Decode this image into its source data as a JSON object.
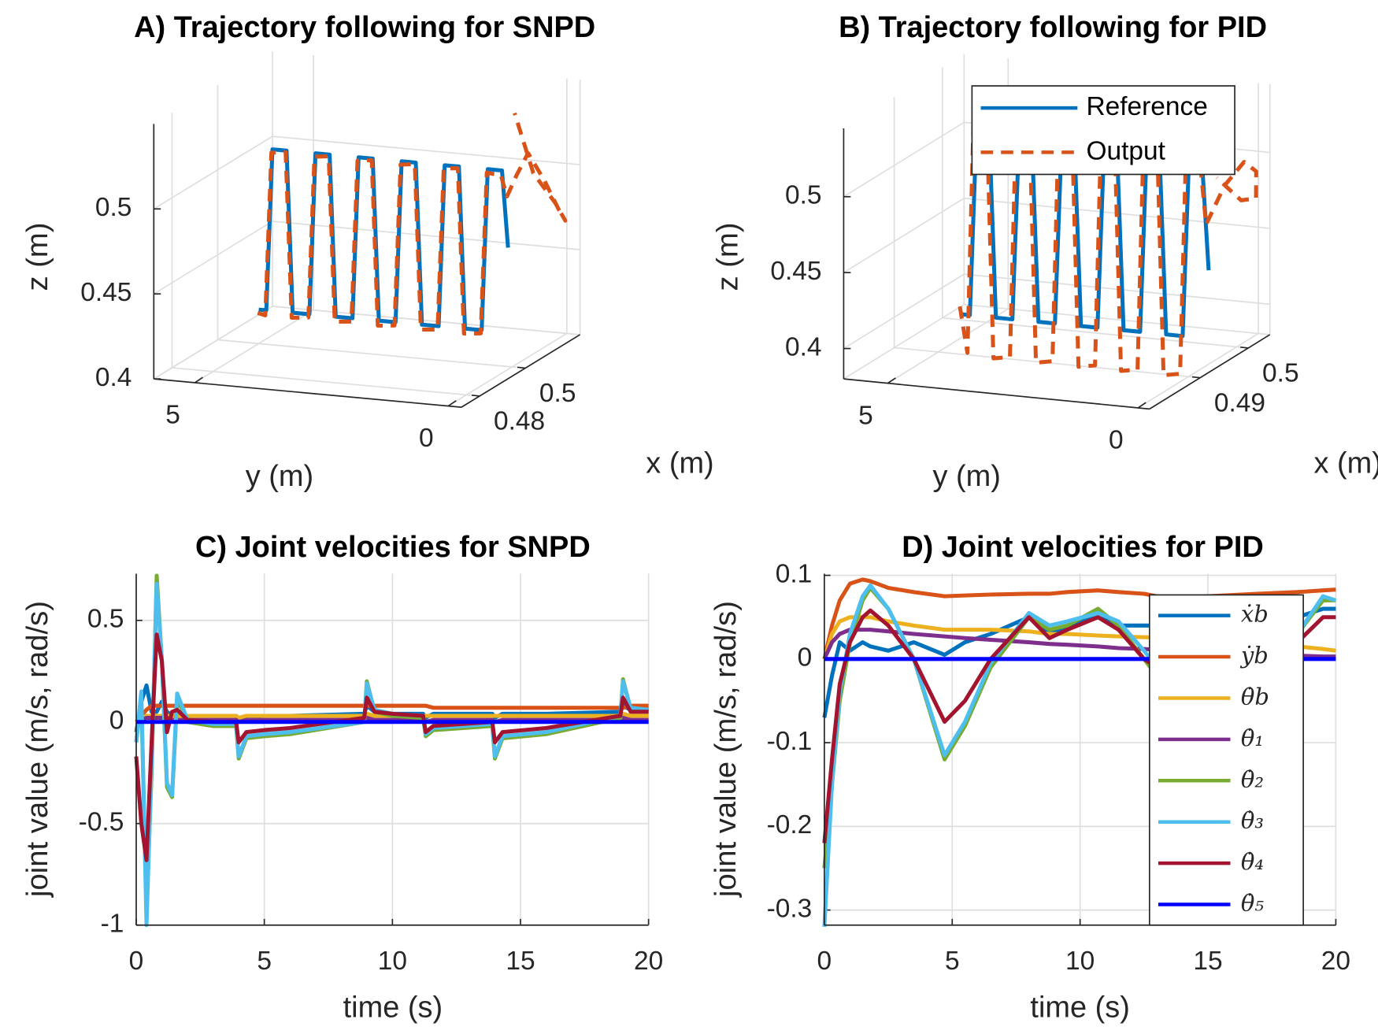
{
  "chart_data": [
    {
      "type": "line3d",
      "title": "A) Trajectory following for SNPD",
      "xlabel": "x (m)",
      "ylabel": "y (m)",
      "zlabel": "z (m)",
      "xlim": [
        0.472,
        0.524
      ],
      "ylim": [
        -0.26,
        5.81
      ],
      "zlim": [
        0.4,
        0.55
      ],
      "xticks": [
        0.48,
        0.5
      ],
      "yticks": [
        5,
        0
      ],
      "zticks": [
        0.4,
        0.45,
        0.5
      ],
      "grid": true,
      "series": [
        {
          "color": "#0072BD",
          "line_style": "solid",
          "x": [
            0.5,
            0.5,
            0.5,
            0.5,
            0.5,
            0.5,
            0.5,
            0.5,
            0.5,
            0.5,
            0.5,
            0.5,
            0.5,
            0.5,
            0.5,
            0.5,
            0.5,
            0.5,
            0.5,
            0.5,
            0.5,
            0.5,
            0.5,
            0.5,
            0.5
          ],
          "y": [
            5.0,
            4.85,
            4.73,
            4.45,
            4.33,
            4.0,
            3.88,
            3.6,
            3.48,
            3.15,
            3.03,
            2.75,
            2.63,
            2.3,
            2.18,
            1.9,
            1.78,
            1.45,
            1.33,
            1.05,
            0.93,
            0.6,
            0.48,
            0.2,
            0.08
          ],
          "z": [
            0.42,
            0.42,
            0.515,
            0.515,
            0.42,
            0.42,
            0.515,
            0.515,
            0.42,
            0.42,
            0.515,
            0.515,
            0.42,
            0.42,
            0.515,
            0.515,
            0.42,
            0.42,
            0.515,
            0.515,
            0.42,
            0.42,
            0.515,
            0.515,
            0.47
          ]
        },
        {
          "color": "#D95319",
          "line_style": "dashed",
          "x": [
            0.5,
            0.5,
            0.5,
            0.5,
            0.5,
            0.5,
            0.5,
            0.5,
            0.5,
            0.5,
            0.5,
            0.5,
            0.5,
            0.5,
            0.5,
            0.5,
            0.5,
            0.5,
            0.5,
            0.5,
            0.5,
            0.5,
            0.5,
            0.5,
            0.5,
            0.503,
            0.507,
            0.512,
            0.516,
            0.52,
            0.52,
            0.516,
            0.51
          ],
          "y": [
            5.02,
            4.87,
            4.75,
            4.47,
            4.35,
            4.02,
            3.9,
            3.62,
            3.5,
            3.17,
            3.05,
            2.77,
            2.65,
            2.32,
            2.2,
            1.92,
            1.8,
            1.47,
            1.35,
            1.07,
            0.95,
            0.62,
            0.5,
            0.22,
            0.1,
            0.05,
            0.0,
            -0.1,
            -0.2,
            -0.15,
            0.05,
            0.3,
            0.4
          ],
          "z": [
            0.418,
            0.417,
            0.513,
            0.514,
            0.417,
            0.418,
            0.513,
            0.514,
            0.417,
            0.418,
            0.513,
            0.514,
            0.417,
            0.418,
            0.513,
            0.514,
            0.417,
            0.418,
            0.513,
            0.514,
            0.417,
            0.418,
            0.513,
            0.512,
            0.5,
            0.51,
            0.52,
            0.5,
            0.48,
            0.47,
            0.48,
            0.5,
            0.54
          ]
        }
      ]
    },
    {
      "type": "line3d",
      "title": "B) Trajectory following for PID",
      "xlabel": "x (m)",
      "ylabel": "y (m)",
      "zlabel": "z (m)",
      "xlim": [
        0.4795,
        0.5045
      ],
      "ylim": [
        -0.23,
        5.88
      ],
      "zlim": [
        0.38,
        0.545
      ],
      "xticks": [
        0.49,
        0.5
      ],
      "yticks": [
        5,
        0
      ],
      "zticks": [
        0.4,
        0.45,
        0.5
      ],
      "grid": true,
      "legend": "northeast",
      "series": [
        {
          "name": "Reference",
          "color": "#0072BD",
          "line_style": "solid",
          "x": [
            0.495,
            0.495,
            0.495,
            0.495,
            0.495,
            0.495,
            0.495,
            0.495,
            0.495,
            0.495,
            0.495,
            0.495,
            0.495,
            0.495,
            0.495,
            0.495,
            0.495,
            0.495,
            0.495,
            0.495,
            0.495,
            0.495,
            0.495,
            0.495,
            0.495
          ],
          "y": [
            5.0,
            4.85,
            4.73,
            4.45,
            4.33,
            4.0,
            3.88,
            3.6,
            3.48,
            3.15,
            3.03,
            2.75,
            2.63,
            2.3,
            2.18,
            1.9,
            1.78,
            1.45,
            1.33,
            1.05,
            0.93,
            0.6,
            0.48,
            0.2,
            0.08
          ],
          "z": [
            0.395,
            0.395,
            0.505,
            0.505,
            0.395,
            0.395,
            0.505,
            0.505,
            0.395,
            0.395,
            0.505,
            0.505,
            0.395,
            0.395,
            0.505,
            0.505,
            0.395,
            0.395,
            0.505,
            0.505,
            0.395,
            0.395,
            0.505,
            0.505,
            0.44
          ]
        },
        {
          "name": "Output",
          "color": "#D95319",
          "line_style": "dashed",
          "x": [
            0.495,
            0.495,
            0.495,
            0.495,
            0.495,
            0.495,
            0.495,
            0.495,
            0.495,
            0.495,
            0.495,
            0.495,
            0.495,
            0.495,
            0.495,
            0.495,
            0.495,
            0.495,
            0.495,
            0.495,
            0.495,
            0.495,
            0.495,
            0.495,
            0.495,
            0.498,
            0.501,
            0.503,
            0.504,
            0.503,
            0.5
          ],
          "y": [
            5.05,
            4.9,
            4.78,
            4.5,
            4.38,
            4.05,
            3.93,
            3.65,
            3.53,
            3.2,
            3.08,
            2.8,
            2.68,
            2.35,
            2.23,
            1.95,
            1.83,
            1.5,
            1.38,
            1.1,
            0.98,
            0.65,
            0.53,
            0.25,
            0.13,
            0.05,
            -0.05,
            -0.1,
            0.0,
            0.2,
            0.4
          ],
          "z": [
            0.4,
            0.37,
            0.52,
            0.51,
            0.368,
            0.37,
            0.52,
            0.51,
            0.368,
            0.37,
            0.52,
            0.51,
            0.368,
            0.37,
            0.52,
            0.51,
            0.368,
            0.37,
            0.52,
            0.51,
            0.368,
            0.37,
            0.52,
            0.51,
            0.47,
            0.49,
            0.5,
            0.49,
            0.47,
            0.47,
            0.49
          ]
        }
      ]
    },
    {
      "type": "line",
      "title": "C) Joint velocities for SNPD",
      "xlabel": "time (s)",
      "ylabel": "joint value (m/s, rad/s)",
      "xlim": [
        0,
        20
      ],
      "ylim": [
        -1,
        0.73
      ],
      "xticks": [
        0,
        5,
        10,
        15,
        20
      ],
      "yticks": [
        -1,
        -0.5,
        0,
        0.5
      ],
      "grid": true,
      "x": [
        0,
        0.2,
        0.4,
        0.6,
        0.8,
        1,
        1.2,
        1.4,
        1.6,
        2,
        3,
        3.9,
        4,
        4.3,
        5,
        6,
        8.9,
        9,
        9.3,
        10,
        11.2,
        11.3,
        11.6,
        13.9,
        14,
        14.3,
        16,
        18.9,
        19,
        19.3,
        20
      ],
      "series": [
        {
          "color": "#0072BD",
          "values": [
            -0.05,
            0.1,
            0.18,
            0.05,
            0.05,
            0.1,
            0.05,
            0.03,
            0.03,
            0.03,
            0.03,
            0.03,
            0,
            0.02,
            0.03,
            0.03,
            0.04,
            0.08,
            0.05,
            0.04,
            0.04,
            0.02,
            0.04,
            0.04,
            0.02,
            0.04,
            0.04,
            0.05,
            0.08,
            0.06,
            0.06
          ]
        },
        {
          "color": "#D95319",
          "values": [
            0,
            0.03,
            0.06,
            0.08,
            0.08,
            0.08,
            0.08,
            0.08,
            0.08,
            0.08,
            0.08,
            0.08,
            0.08,
            0.08,
            0.08,
            0.08,
            0.08,
            0.08,
            0.08,
            0.08,
            0.08,
            0.08,
            0.07,
            0.07,
            0.07,
            0.07,
            0.07,
            0.07,
            0.07,
            0.08,
            0.08
          ]
        },
        {
          "color": "#EDB120",
          "values": [
            0,
            0.02,
            0.03,
            0.03,
            0.03,
            0.03,
            0.03,
            0.03,
            0.03,
            0.03,
            0.03,
            0.03,
            0.02,
            0.03,
            0.03,
            0.03,
            0.03,
            0.04,
            0.03,
            0.03,
            0.03,
            0.03,
            0.03,
            0.03,
            0.03,
            0.03,
            0.03,
            0.03,
            0.04,
            0.03,
            0.03
          ]
        },
        {
          "color": "#7E2F8E",
          "values": [
            0,
            0.01,
            0.02,
            0.02,
            0.02,
            0.02,
            0.02,
            0.01,
            0.01,
            0.01,
            0.01,
            0.01,
            0,
            0.01,
            0.01,
            0.01,
            0.01,
            0.02,
            0.01,
            0.01,
            0.01,
            0,
            0.01,
            0.01,
            0,
            0.01,
            0.01,
            0.01,
            0.02,
            0.01,
            0.01
          ]
        },
        {
          "color": "#77AC30",
          "values": [
            -0.1,
            0.12,
            -0.93,
            -0.25,
            0.72,
            0.3,
            -0.32,
            -0.37,
            0.12,
            0,
            -0.02,
            -0.02,
            -0.18,
            -0.08,
            -0.07,
            -0.06,
            0,
            0.2,
            0.05,
            0.03,
            0.02,
            -0.07,
            -0.04,
            -0.02,
            -0.18,
            -0.08,
            -0.06,
            0.02,
            0.21,
            0.06,
            0.05
          ]
        },
        {
          "color": "#4DBEEE",
          "values": [
            -0.1,
            0.15,
            -1,
            -0.2,
            0.68,
            0.3,
            -0.3,
            -0.36,
            0.14,
            0.01,
            -0.01,
            -0.01,
            -0.17,
            -0.07,
            -0.06,
            -0.05,
            0,
            0.19,
            0.06,
            0.04,
            0.03,
            -0.06,
            -0.03,
            -0.01,
            -0.17,
            -0.07,
            -0.05,
            0.03,
            0.2,
            0.07,
            0.06
          ]
        },
        {
          "color": "#A2142F",
          "values": [
            -0.17,
            -0.5,
            -0.68,
            -0.1,
            0.43,
            0.3,
            -0.05,
            0.05,
            0.06,
            0.01,
            0,
            0,
            -0.1,
            -0.05,
            -0.04,
            -0.03,
            0.02,
            0.12,
            0.05,
            0.04,
            0.03,
            -0.05,
            -0.02,
            0,
            -0.1,
            -0.05,
            -0.03,
            0.03,
            0.12,
            0.05,
            0.05
          ]
        },
        {
          "color": "#0000FF",
          "values": [
            0,
            0,
            0,
            0,
            0,
            0,
            0,
            0,
            0,
            0,
            0,
            0,
            0,
            0,
            0,
            0,
            0,
            0,
            0,
            0,
            0,
            0,
            0,
            0,
            0,
            0,
            0,
            0,
            0,
            0,
            0
          ]
        }
      ]
    },
    {
      "type": "line",
      "title": "D) Joint velocities for PID",
      "xlabel": "time (s)",
      "ylabel": "joint value (m/s, rad/s)",
      "xlim": [
        0,
        20
      ],
      "ylim": [
        -0.318,
        0.102
      ],
      "xticks": [
        0,
        5,
        10,
        15,
        20
      ],
      "yticks": [
        -0.3,
        -0.2,
        -0.1,
        0,
        0.1
      ],
      "grid": true,
      "legend": "east",
      "x": [
        0,
        0.3,
        0.6,
        1,
        1.5,
        1.8,
        2.5,
        3.5,
        4.7,
        5.5,
        6.5,
        8,
        8.8,
        9.5,
        10.7,
        11.5,
        12.5,
        13.5,
        15,
        17,
        18.5,
        19.5,
        20
      ],
      "series": [
        {
          "name": "ẋb",
          "color": "#0072BD",
          "values": [
            -0.07,
            -0.02,
            0.02,
            0.01,
            0.02,
            0.015,
            0.01,
            0.02,
            0.005,
            0.02,
            0.03,
            0.05,
            0.03,
            0.04,
            0.05,
            0.04,
            0.04,
            0.04,
            0.04,
            0.04,
            0.05,
            0.06,
            0.06
          ]
        },
        {
          "name": "ẏb",
          "color": "#D95319",
          "values": [
            0,
            0.04,
            0.07,
            0.09,
            0.095,
            0.093,
            0.085,
            0.08,
            0.075,
            0.076,
            0.077,
            0.078,
            0.078,
            0.08,
            0.082,
            0.08,
            0.078,
            0.072,
            0.075,
            0.078,
            0.08,
            0.082,
            0.083
          ]
        },
        {
          "name": "θ̇b",
          "color": "#EDB120",
          "values": [
            0,
            0.03,
            0.045,
            0.05,
            0.05,
            0.05,
            0.045,
            0.04,
            0.035,
            0.035,
            0.035,
            0.033,
            0.03,
            0.03,
            0.028,
            0.027,
            0.026,
            0.025,
            0.022,
            0.018,
            0.015,
            0.012,
            0.01
          ]
        },
        {
          "name": "θ̇₁",
          "color": "#7E2F8E",
          "values": [
            0,
            0.02,
            0.03,
            0.035,
            0.035,
            0.035,
            0.033,
            0.03,
            0.027,
            0.025,
            0.023,
            0.02,
            0.018,
            0.017,
            0.015,
            0.013,
            0.012,
            0.01,
            0.008,
            0.006,
            0.004,
            0.003,
            0.003
          ]
        },
        {
          "name": "θ̇₂",
          "color": "#77AC30",
          "values": [
            -0.25,
            -0.15,
            -0.05,
            0.02,
            0.07,
            0.085,
            0.06,
            0,
            -0.12,
            -0.08,
            -0.01,
            0.05,
            0.035,
            0.04,
            0.06,
            0.04,
            0,
            -0.04,
            -0.02,
            0,
            0.03,
            0.07,
            0.07
          ]
        },
        {
          "name": "θ̇₃",
          "color": "#4DBEEE",
          "values": [
            -0.32,
            -0.15,
            -0.04,
            0.03,
            0.075,
            0.088,
            0.06,
            0,
            -0.115,
            -0.075,
            -0.005,
            0.055,
            0.04,
            0.045,
            0.055,
            0.045,
            0.01,
            -0.03,
            -0.02,
            0,
            0.03,
            0.075,
            0.07
          ]
        },
        {
          "name": "θ̇₄",
          "color": "#A2142F",
          "values": [
            -0.22,
            -0.12,
            -0.03,
            0.02,
            0.05,
            0.058,
            0.04,
            0,
            -0.075,
            -0.05,
            0,
            0.05,
            0.025,
            0.035,
            0.05,
            0.035,
            0,
            -0.02,
            -0.01,
            0,
            0.02,
            0.05,
            0.05
          ]
        },
        {
          "name": "θ̇₅",
          "color": "#0000FF",
          "values": [
            0,
            0,
            0,
            0,
            0,
            0,
            0,
            0,
            0,
            0,
            0,
            0,
            0,
            0,
            0,
            0,
            0,
            0,
            0,
            0,
            0,
            0,
            0
          ]
        }
      ]
    }
  ]
}
